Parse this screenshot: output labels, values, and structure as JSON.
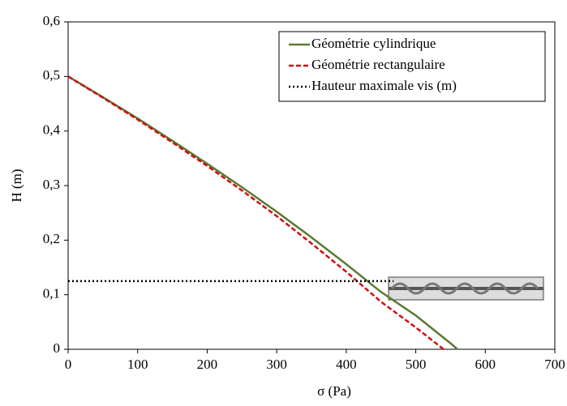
{
  "chart_data": {
    "type": "line",
    "x_label": "σ (Pa)",
    "y_label": "H (m)",
    "xlim": [
      0,
      700
    ],
    "xticks": [
      0,
      100,
      200,
      300,
      400,
      500,
      600,
      700
    ],
    "ylim": [
      0,
      0.6
    ],
    "yticks": [
      0,
      {
        "value": 0.1,
        "label": "0,1"
      },
      {
        "value": 0.2,
        "label": "0,2"
      },
      {
        "value": 0.3,
        "label": "0,3"
      },
      {
        "value": 0.4,
        "label": "0,4"
      },
      {
        "value": 0.5,
        "label": "0,5"
      },
      {
        "value": 0.6,
        "label": "0,6"
      }
    ],
    "legend": "top-right",
    "series": [
      {
        "name": "Géométrie cylindrique",
        "color": "#5a7a32",
        "dash": "solid",
        "x": [
          0,
          50,
          100,
          150,
          200,
          250,
          300,
          350,
          400,
          450,
          500,
          550,
          560
        ],
        "values": [
          0.5,
          0.462,
          0.423,
          0.382,
          0.34,
          0.297,
          0.252,
          0.205,
          0.156,
          0.105,
          0.062,
          0.011,
          0
        ]
      },
      {
        "name": "Géométrie rectangulaire",
        "color": "#cc1111",
        "dash": "dashed",
        "x": [
          0,
          50,
          100,
          150,
          200,
          250,
          300,
          350,
          400,
          450,
          500,
          540
        ],
        "values": [
          0.5,
          0.461,
          0.421,
          0.379,
          0.336,
          0.291,
          0.244,
          0.194,
          0.142,
          0.087,
          0.04,
          0
        ]
      },
      {
        "name": "Hauteur maximale vis (m)",
        "color": "#000000",
        "dash": "dotted",
        "x": [
          0,
          468
        ],
        "values": [
          0.125,
          0.125
        ]
      }
    ]
  }
}
